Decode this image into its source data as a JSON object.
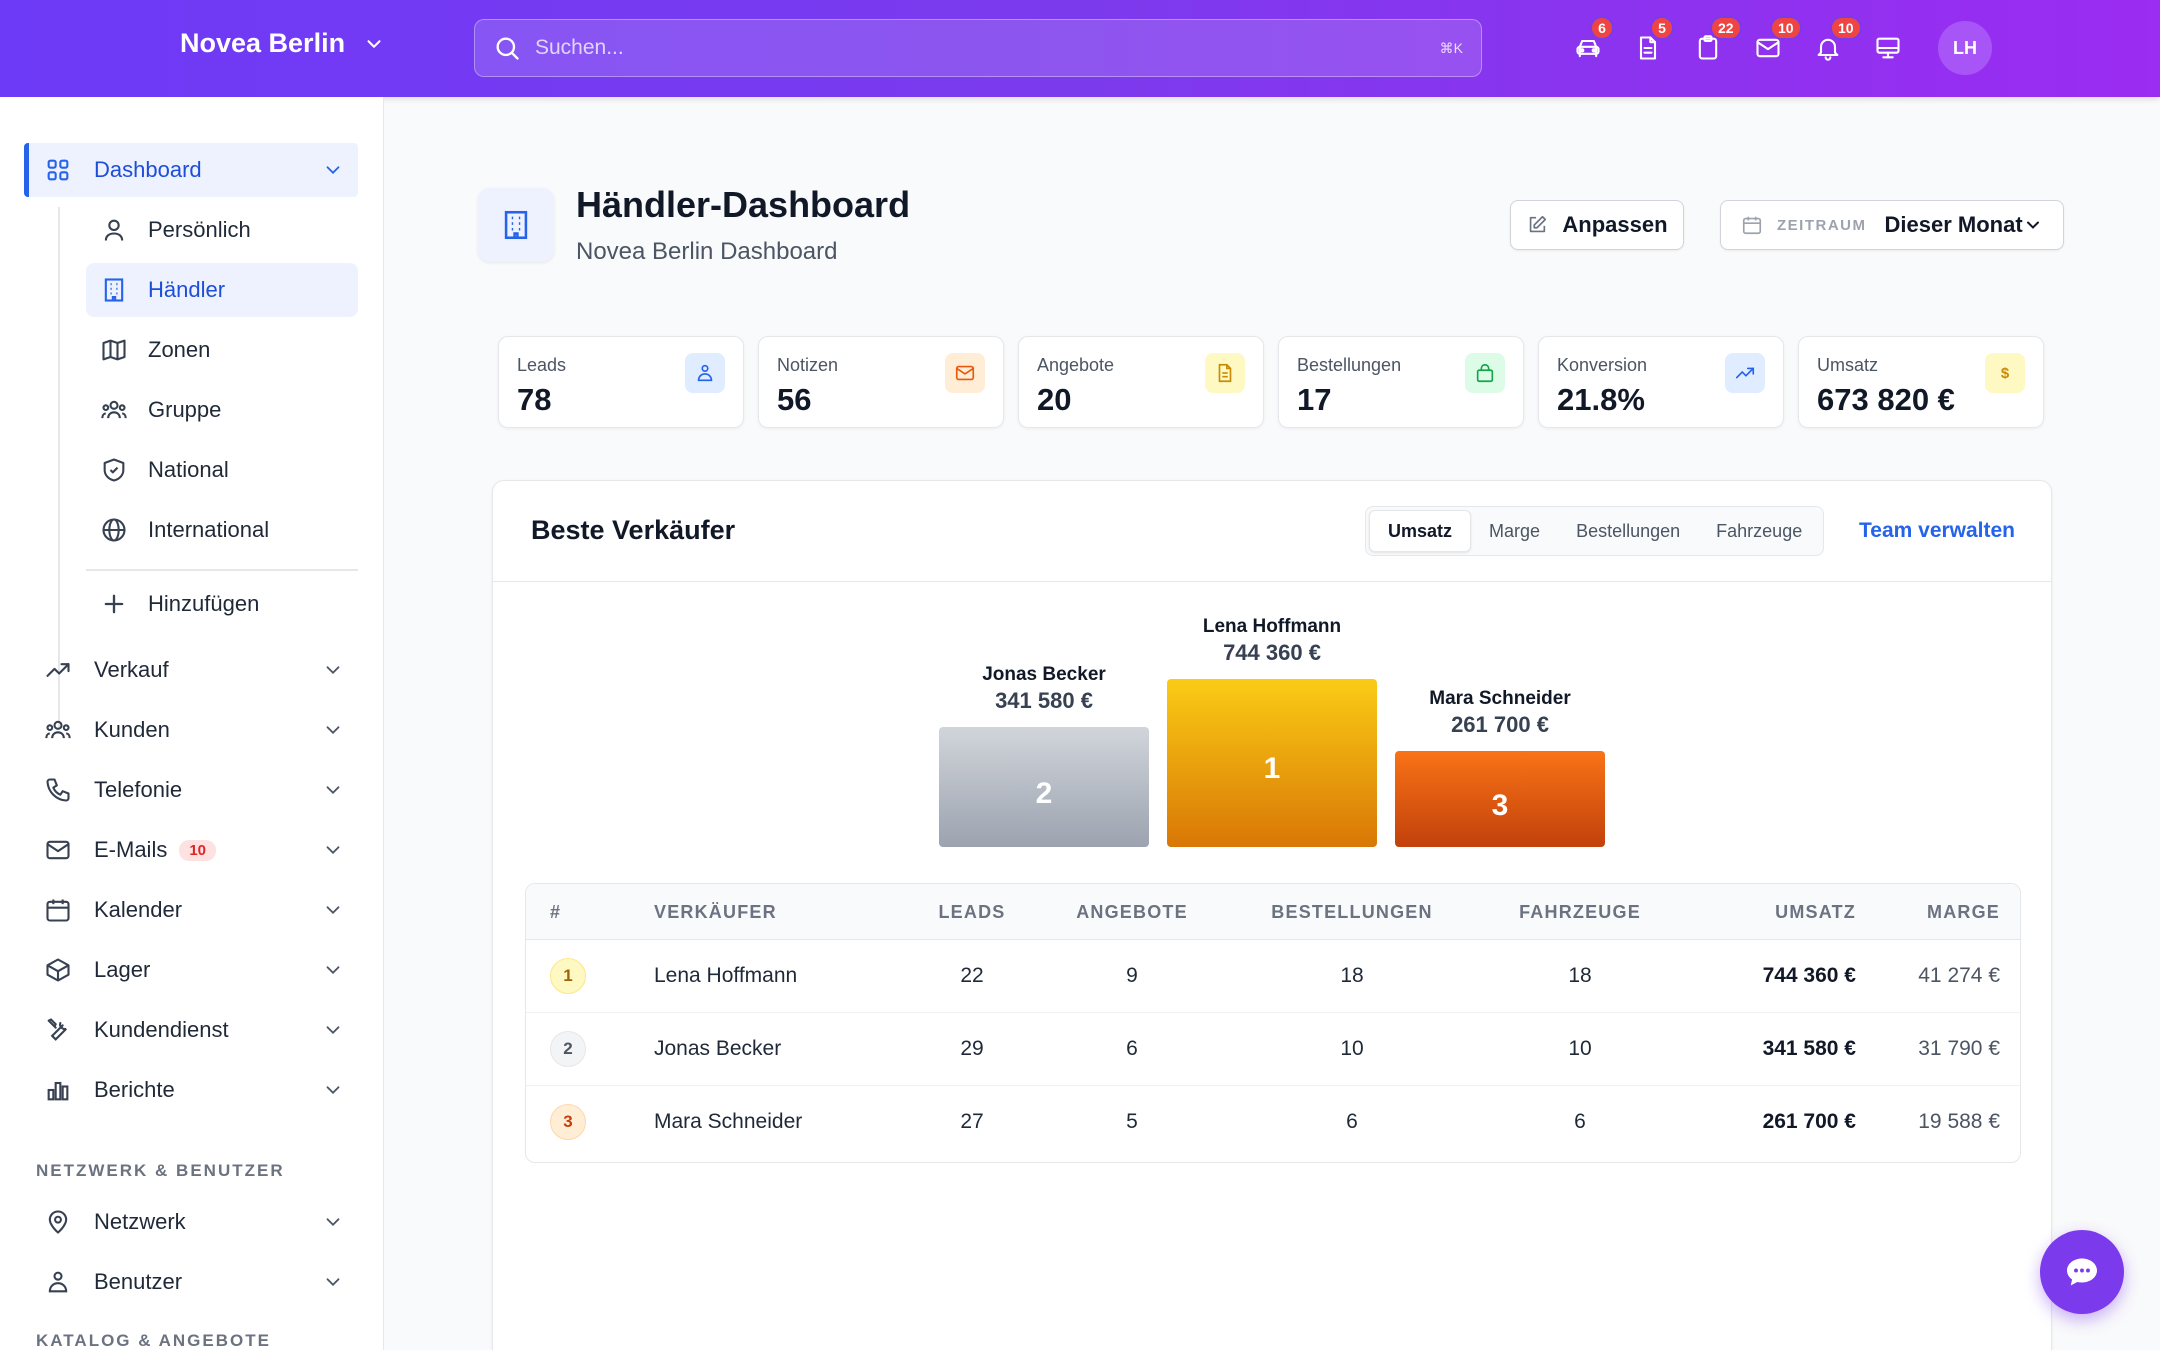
{
  "header": {
    "brand": "Novea Berlin",
    "search_placeholder": "Suchen...",
    "search_shortcut": "⌘K",
    "icons": [
      {
        "name": "car-icon",
        "badge": "6"
      },
      {
        "name": "document-icon",
        "badge": "5"
      },
      {
        "name": "clipboard-icon",
        "badge": "22"
      },
      {
        "name": "mail-icon",
        "badge": "10"
      },
      {
        "name": "bell-icon",
        "badge": "10"
      },
      {
        "name": "monitor-icon",
        "badge": ""
      }
    ],
    "avatar": "LH"
  },
  "sidebar": {
    "dashboard": "Dashboard",
    "sub_items": [
      "Persönlich",
      "Händler",
      "Zonen",
      "Gruppe",
      "National",
      "International"
    ],
    "add": "Hinzufügen",
    "items": [
      "Verkauf",
      "Kunden",
      "Telefonie",
      "E-Mails",
      "Kalender",
      "Lager",
      "Kundendienst",
      "Berichte"
    ],
    "emails_badge": "10",
    "section_network": "NETZWERK & BENUTZER",
    "network_items": [
      "Netzwerk",
      "Benutzer"
    ],
    "section_catalog": "KATALOG & ANGEBOTE"
  },
  "page": {
    "title": "Händler-Dashboard",
    "subtitle": "Novea Berlin Dashboard",
    "customize": "Anpassen",
    "period_label": "ZEITRAUM",
    "period_value": "Dieser Monat"
  },
  "stats": [
    {
      "label": "Leads",
      "value": "78",
      "color": "#2563eb",
      "bg": "#e0ecff"
    },
    {
      "label": "Notizen",
      "value": "56",
      "color": "#ea580c",
      "bg": "#ffedd5"
    },
    {
      "label": "Angebote",
      "value": "20",
      "color": "#ca8a04",
      "bg": "#fef9c3"
    },
    {
      "label": "Bestellungen",
      "value": "17",
      "color": "#16a34a",
      "bg": "#dcfce7"
    },
    {
      "label": "Konversion",
      "value": "21.8%",
      "color": "#2563eb",
      "bg": "#e0ecff"
    },
    {
      "label": "Umsatz",
      "value": "673 820 €",
      "color": "#ca8a04",
      "bg": "#fef9c3"
    }
  ],
  "sellers": {
    "title": "Beste Verkäufer",
    "tabs": [
      "Umsatz",
      "Marge",
      "Bestellungen",
      "Fahrzeuge"
    ],
    "active_tab": "Umsatz",
    "manage": "Team verwalten",
    "podium": [
      {
        "rank": "2",
        "name": "Jonas Becker",
        "value": "341 580 €"
      },
      {
        "rank": "1",
        "name": "Lena Hoffmann",
        "value": "744 360 €"
      },
      {
        "rank": "3",
        "name": "Mara Schneider",
        "value": "261 700 €"
      }
    ],
    "columns": [
      "#",
      "VERKÄUFER",
      "LEADS",
      "ANGEBOTE",
      "BESTELLUNGEN",
      "FAHRZEUGE",
      "UMSATZ",
      "MARGE"
    ],
    "rows": [
      {
        "rank": "1",
        "name": "Lena Hoffmann",
        "leads": "22",
        "offers": "9",
        "orders": "18",
        "vehicles": "18",
        "revenue": "744 360 €",
        "margin": "41 274 €"
      },
      {
        "rank": "2",
        "name": "Jonas Becker",
        "leads": "29",
        "offers": "6",
        "orders": "10",
        "vehicles": "10",
        "revenue": "341 580 €",
        "margin": "31 790 €"
      },
      {
        "rank": "3",
        "name": "Mara Schneider",
        "leads": "27",
        "offers": "5",
        "orders": "6",
        "vehicles": "6",
        "revenue": "261 700 €",
        "margin": "19 588 €"
      }
    ]
  }
}
